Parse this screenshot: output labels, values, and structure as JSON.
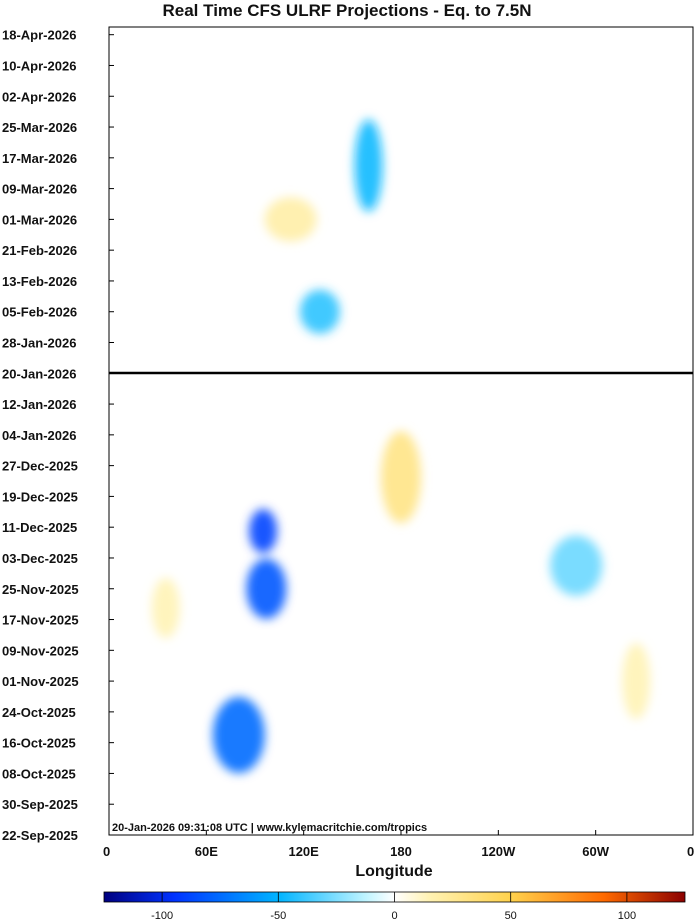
{
  "chart_data": {
    "type": "heatmap",
    "title": "Real Time CFS ULRF Projections - Eq. to 7.5N",
    "xlabel": "Longitude",
    "ylabel": "",
    "x_ticks": [
      "0",
      "60E",
      "120E",
      "180",
      "120W",
      "60W",
      "0"
    ],
    "x_range": [
      "0",
      "0"
    ],
    "y_ticks": [
      "18-Apr-2026",
      "10-Apr-2026",
      "02-Apr-2026",
      "25-Mar-2026",
      "17-Mar-2026",
      "09-Mar-2026",
      "01-Mar-2026",
      "21-Feb-2026",
      "13-Feb-2026",
      "05-Feb-2026",
      "28-Jan-2026",
      "20-Jan-2026",
      "12-Jan-2026",
      "04-Jan-2026",
      "27-Dec-2025",
      "19-Dec-2025",
      "11-Dec-2025",
      "03-Dec-2025",
      "25-Nov-2025",
      "17-Nov-2025",
      "09-Nov-2025",
      "01-Nov-2025",
      "24-Oct-2025",
      "16-Oct-2025",
      "08-Oct-2025",
      "30-Sep-2025",
      "22-Sep-2025"
    ],
    "y_range": [
      "22-Sep-2025",
      "20-Apr-2026"
    ],
    "current_date_line": "20-Jan-2026",
    "annotation": "20-Jan-2026 09:31:08 UTC | www.kylemacritchie.com/tropics",
    "colorbar": {
      "ticks": [
        -100,
        -50,
        0,
        50,
        100
      ],
      "range": [
        -125,
        125
      ],
      "colors": [
        "#00007f",
        "#0032ff",
        "#00b4ff",
        "#bff4ff",
        "#ffffff",
        "#fff2b3",
        "#ffd24d",
        "#ff6a00",
        "#8b0000"
      ]
    },
    "features": [
      {
        "lon_deg": 95,
        "date": "10-Dec-2025",
        "value": -90
      },
      {
        "lon_deg": 97,
        "date": "25-Nov-2025",
        "value": -85
      },
      {
        "lon_deg": 80,
        "date": "18-Oct-2025",
        "value": -80
      },
      {
        "lon_deg": 160,
        "date": "15-Mar-2026",
        "value": -60
      },
      {
        "lon_deg": 130,
        "date": "05-Feb-2026",
        "value": -55
      },
      {
        "lon_deg": 288,
        "date": "01-Dec-2025",
        "value": -45
      },
      {
        "lon_deg": 325,
        "date": "01-Nov-2025",
        "value": 30
      },
      {
        "lon_deg": 180,
        "date": "24-Dec-2025",
        "value": 45
      },
      {
        "lon_deg": 112,
        "date": "01-Mar-2026",
        "value": 35
      },
      {
        "lon_deg": 35,
        "date": "20-Nov-2025",
        "value": 30
      }
    ]
  }
}
